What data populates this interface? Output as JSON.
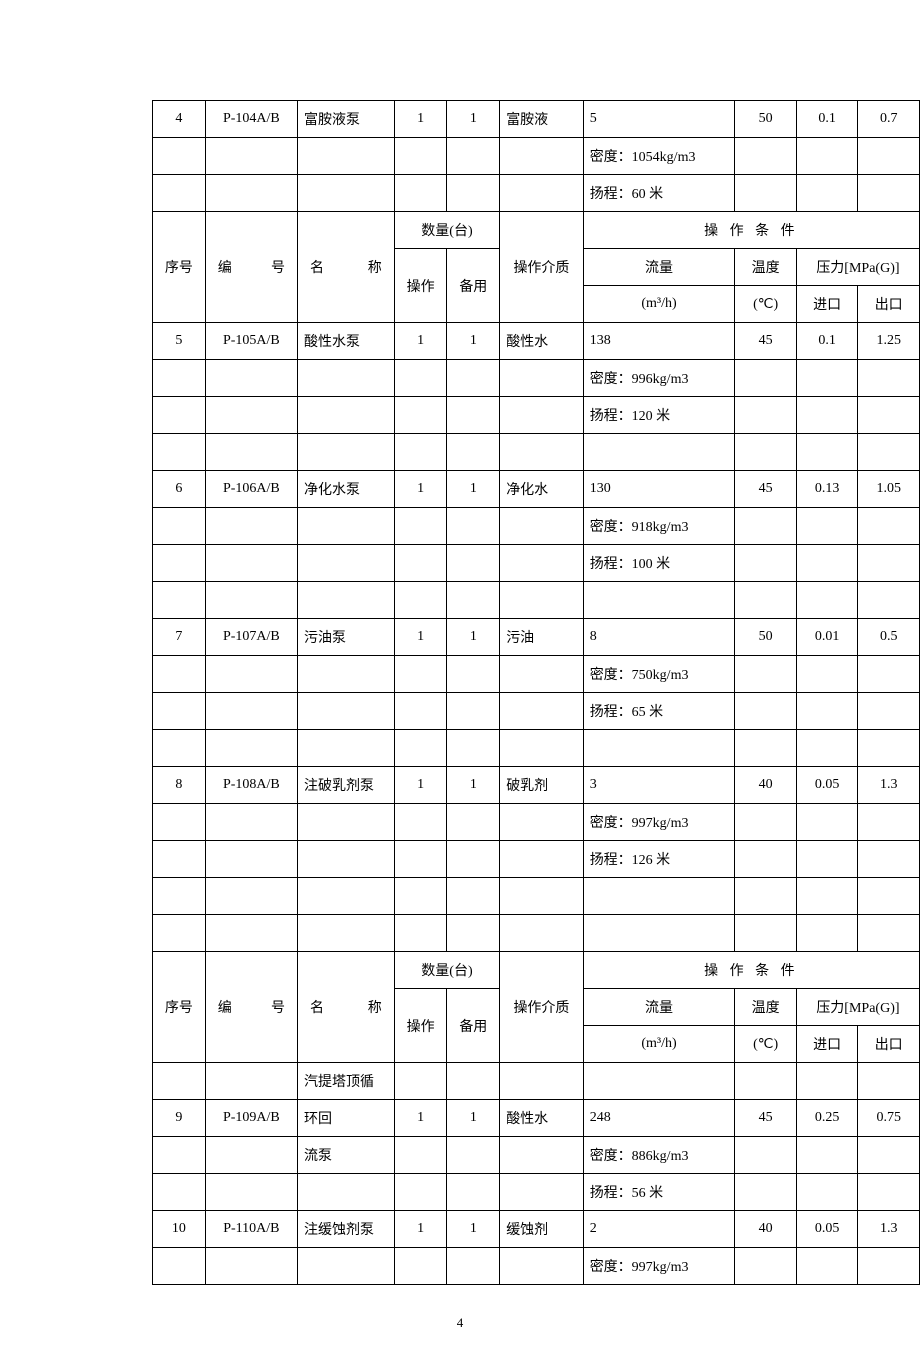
{
  "page_number": "4",
  "headers": {
    "seq": "序号",
    "code": "编　号",
    "name": "名　　称",
    "qty": "数量(台)",
    "op": "操作",
    "bk": "备用",
    "medium": "操作介质",
    "cond": "操 作 条 件",
    "flow": "流量",
    "flow_unit": "(m³/h)",
    "temp": "温度",
    "temp_unit": "(℃)",
    "pressure": "压力[MPa(G)]",
    "pin": "进口",
    "pout": "出口"
  },
  "rows": [
    {
      "seq": "4",
      "code": "P-104A/B",
      "name": "富胺液泵",
      "op": "1",
      "bk": "1",
      "medium": "富胺液",
      "flow": "5",
      "temp": "50",
      "pin": "0.1",
      "pout": "0.7"
    },
    {
      "flow": "密度：1054kg/m3"
    },
    {
      "flow": "扬程：60 米"
    },
    {
      "header": 1
    },
    {
      "seq": "5",
      "code": "P-105A/B",
      "name": "酸性水泵",
      "op": "1",
      "bk": "1",
      "medium": "酸性水",
      "flow": "138",
      "temp": "45",
      "pin": "0.1",
      "pout": "1.25"
    },
    {
      "flow": "密度：996kg/m3"
    },
    {
      "flow": "扬程：120 米"
    },
    {
      "blank": 1
    },
    {
      "seq": "6",
      "code": "P-106A/B",
      "name": "净化水泵",
      "op": "1",
      "bk": "1",
      "medium": "净化水",
      "flow": "130",
      "temp": "45",
      "pin": "0.13",
      "pout": "1.05"
    },
    {
      "flow": "密度：918kg/m3"
    },
    {
      "flow": "扬程：100 米"
    },
    {
      "blank": 1
    },
    {
      "seq": "7",
      "code": "P-107A/B",
      "name": "污油泵",
      "op": "1",
      "bk": "1",
      "medium": "污油",
      "flow": "8",
      "temp": "50",
      "pin": "0.01",
      "pout": "0.5"
    },
    {
      "flow": "密度：750kg/m3"
    },
    {
      "flow": "扬程：65 米"
    },
    {
      "blank": 1
    },
    {
      "seq": "8",
      "code": "P-108A/B",
      "name": "注破乳剂泵",
      "op": "1",
      "bk": "1",
      "medium": "破乳剂",
      "flow": "3",
      "temp": "40",
      "pin": "0.05",
      "pout": "1.3"
    },
    {
      "flow": "密度：997kg/m3"
    },
    {
      "flow": "扬程：126 米"
    },
    {
      "blank": 1
    },
    {
      "blank": 1
    },
    {
      "header": 1
    },
    {
      "seq": "9",
      "code": "P-109A/B",
      "name": "汽提塔顶循环回",
      "op": "1",
      "bk": "1",
      "medium": "酸性水",
      "flow": "248",
      "temp": "45",
      "pin": "0.25",
      "pout": "0.75",
      "name_twoline": true
    },
    {
      "name": "流泵",
      "flow": "密度：886kg/m3"
    },
    {
      "flow": "扬程：56 米"
    },
    {
      "seq": "10",
      "code": "P-110A/B",
      "name": "注缓蚀剂泵",
      "op": "1",
      "bk": "1",
      "medium": "缓蚀剂",
      "flow": "2",
      "temp": "40",
      "pin": "0.05",
      "pout": "1.3"
    },
    {
      "flow": "密度：997kg/m3"
    }
  ]
}
